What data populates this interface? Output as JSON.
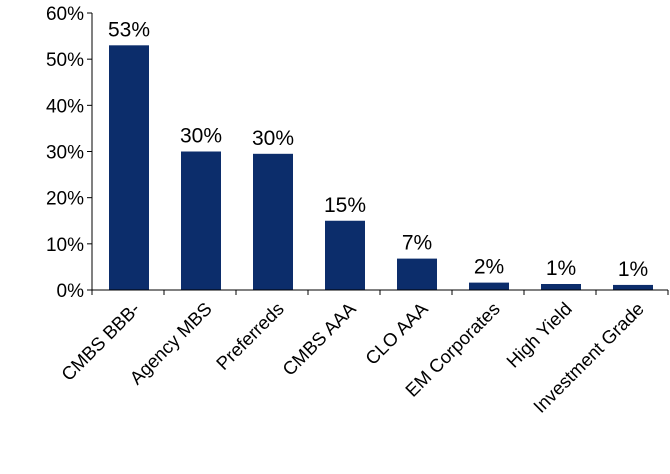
{
  "chart_data": {
    "type": "bar",
    "title": "",
    "xlabel": "",
    "ylabel": "",
    "categories": [
      "CMBS BBB-",
      "Agency MBS",
      "Preferreds",
      "CMBS AAA",
      "CLO AAA",
      "EM Corporates",
      "High Yield",
      "Investment Grade"
    ],
    "values": [
      53,
      30,
      29.5,
      15,
      6.8,
      1.6,
      1.3,
      1.1
    ],
    "data_labels": [
      "53%",
      "30%",
      "30%",
      "15%",
      "7%",
      "2%",
      "1%",
      "1%"
    ],
    "ylim": [
      0,
      60
    ],
    "yticks": [
      0,
      10,
      20,
      30,
      40,
      50,
      60
    ],
    "ytick_labels": [
      "0%",
      "10%",
      "20%",
      "30%",
      "40%",
      "50%",
      "60%"
    ],
    "grid": false,
    "legend": "none",
    "bar_color": "#0c2d6b"
  }
}
